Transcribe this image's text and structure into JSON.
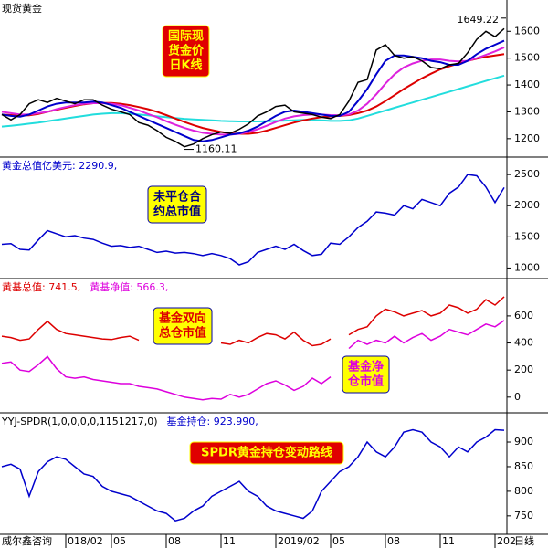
{
  "chart_data": [
    {
      "type": "line",
      "header": [
        {
          "text": "现货黄金",
          "color": "#000000"
        }
      ],
      "boxes": [
        {
          "lines": [
            "国际现",
            "货金价",
            "日K线"
          ],
          "fill": "#e00000",
          "text_color": "#ffff00"
        }
      ],
      "ylim": [
        1145,
        1703
      ],
      "yticks": [
        1200,
        1300,
        1400,
        1500,
        1600
      ],
      "annotations": [
        {
          "value": 1649.22,
          "label": "1649.22",
          "at": "max"
        },
        {
          "value": 1160.11,
          "label": "1160.11",
          "at": "min"
        }
      ],
      "series": [
        {
          "name": "MA-cyan",
          "color": "#22dddd",
          "values": [
            1245,
            1248,
            1252,
            1256,
            1260,
            1265,
            1270,
            1275,
            1280,
            1285,
            1290,
            1293,
            1295,
            1295,
            1293,
            1290,
            1287,
            1283,
            1280,
            1277,
            1274,
            1272,
            1270,
            1268,
            1266,
            1265,
            1264,
            1264,
            1264,
            1265,
            1266,
            1267,
            1268,
            1270,
            1270,
            1268,
            1266,
            1266,
            1268,
            1275,
            1285,
            1295,
            1305,
            1315,
            1325,
            1335,
            1345,
            1355,
            1365,
            1375,
            1385,
            1395,
            1405,
            1415,
            1425,
            1435
          ]
        },
        {
          "name": "MA-red",
          "color": "#dd0000",
          "values": [
            1290,
            1288,
            1286,
            1287,
            1292,
            1300,
            1308,
            1315,
            1322,
            1328,
            1332,
            1333,
            1333,
            1330,
            1325,
            1318,
            1310,
            1300,
            1288,
            1275,
            1262,
            1250,
            1240,
            1232,
            1225,
            1220,
            1218,
            1218,
            1222,
            1230,
            1240,
            1250,
            1260,
            1268,
            1275,
            1280,
            1283,
            1285,
            1288,
            1295,
            1305,
            1320,
            1340,
            1362,
            1385,
            1405,
            1425,
            1442,
            1458,
            1470,
            1480,
            1490,
            1498,
            1505,
            1510,
            1515
          ]
        },
        {
          "name": "MA-magenta",
          "color": "#dd22dd",
          "values": [
            1300,
            1295,
            1290,
            1290,
            1295,
            1300,
            1310,
            1318,
            1325,
            1330,
            1332,
            1332,
            1330,
            1325,
            1315,
            1305,
            1292,
            1280,
            1265,
            1252,
            1240,
            1230,
            1222,
            1218,
            1215,
            1215,
            1218,
            1225,
            1235,
            1248,
            1262,
            1275,
            1283,
            1288,
            1290,
            1290,
            1288,
            1287,
            1290,
            1305,
            1330,
            1365,
            1405,
            1440,
            1465,
            1480,
            1490,
            1495,
            1495,
            1490,
            1488,
            1490,
            1500,
            1512,
            1525,
            1540
          ]
        },
        {
          "name": "MA-blue",
          "color": "#0000cc",
          "values": [
            1290,
            1285,
            1282,
            1290,
            1305,
            1320,
            1330,
            1335,
            1335,
            1335,
            1338,
            1335,
            1325,
            1315,
            1300,
            1285,
            1270,
            1255,
            1240,
            1225,
            1210,
            1195,
            1190,
            1195,
            1205,
            1215,
            1220,
            1230,
            1245,
            1265,
            1285,
            1300,
            1305,
            1300,
            1295,
            1290,
            1285,
            1285,
            1300,
            1340,
            1385,
            1440,
            1490,
            1510,
            1510,
            1505,
            1500,
            1490,
            1485,
            1475,
            1475,
            1490,
            1515,
            1535,
            1550,
            1565
          ]
        },
        {
          "name": "price",
          "color": "#000000",
          "values": [
            1290,
            1270,
            1290,
            1330,
            1345,
            1335,
            1350,
            1340,
            1330,
            1345,
            1345,
            1325,
            1310,
            1300,
            1290,
            1260,
            1250,
            1230,
            1205,
            1190,
            1170,
            1180,
            1200,
            1215,
            1225,
            1220,
            1235,
            1255,
            1285,
            1300,
            1320,
            1325,
            1300,
            1295,
            1290,
            1280,
            1275,
            1290,
            1340,
            1410,
            1420,
            1530,
            1550,
            1510,
            1500,
            1505,
            1490,
            1465,
            1460,
            1475,
            1480,
            1520,
            1570,
            1600,
            1580,
            1610
          ]
        }
      ]
    },
    {
      "type": "line",
      "header": [
        {
          "text": "黄金总值亿美元: 2290.9,",
          "color": "#0000cc"
        }
      ],
      "boxes": [
        {
          "lines": [
            "未平仓合",
            "约总市值"
          ],
          "fill": "#ffff00",
          "text_color": "#000080"
        }
      ],
      "ylim": [
        889,
        2722
      ],
      "yticks": [
        1000,
        1500,
        2000,
        2500
      ],
      "series": [
        {
          "name": "黄金总值",
          "color": "#0000cc",
          "values": [
            1380,
            1390,
            1300,
            1290,
            1450,
            1600,
            1550,
            1500,
            1520,
            1480,
            1460,
            1400,
            1350,
            1360,
            1330,
            1350,
            1300,
            1250,
            1270,
            1240,
            1250,
            1230,
            1200,
            1230,
            1200,
            1150,
            1050,
            1100,
            1250,
            1300,
            1350,
            1300,
            1380,
            1280,
            1200,
            1220,
            1400,
            1380,
            1500,
            1650,
            1750,
            1900,
            1880,
            1850,
            2000,
            1950,
            2100,
            2050,
            2000,
            2200,
            2300,
            2500,
            2480,
            2300,
            2050,
            2290.9
          ]
        }
      ]
    },
    {
      "type": "line",
      "header": [
        {
          "text": "黄基总值: 741.5,",
          "color": "#dd0000"
        },
        {
          "text": "黄基净值: 566.3,",
          "color": "#dd00dd"
        }
      ],
      "boxes": [
        {
          "lines": [
            "基金双向",
            "总仓市值"
          ],
          "fill": "#ffff00",
          "text_color": "#dd0000"
        },
        {
          "lines": [
            "基金净",
            "仓市值"
          ],
          "fill": "#ffff00",
          "text_color": "#dd00dd"
        }
      ],
      "ylim": [
        -89,
        849
      ],
      "yticks": [
        0,
        200,
        400,
        600
      ],
      "series": [
        {
          "name": "黄基总值",
          "color": "#dd0000",
          "values": [
            450,
            440,
            420,
            430,
            500,
            560,
            500,
            470,
            460,
            450,
            440,
            430,
            425,
            440,
            450,
            420,
            null,
            null,
            null,
            null,
            null,
            null,
            null,
            null,
            400,
            390,
            420,
            400,
            440,
            470,
            460,
            430,
            480,
            420,
            380,
            390,
            430,
            null,
            460,
            500,
            520,
            600,
            650,
            630,
            600,
            620,
            640,
            600,
            620,
            680,
            660,
            620,
            650,
            720,
            680,
            741.5
          ]
        },
        {
          "name": "黄基净值",
          "color": "#dd00dd",
          "values": [
            250,
            260,
            200,
            190,
            240,
            300,
            210,
            150,
            140,
            150,
            130,
            120,
            110,
            100,
            100,
            80,
            70,
            60,
            40,
            20,
            0,
            -10,
            -20,
            -10,
            -15,
            20,
            0,
            20,
            60,
            100,
            120,
            90,
            50,
            80,
            140,
            100,
            150,
            null,
            360,
            420,
            390,
            420,
            400,
            450,
            400,
            440,
            470,
            420,
            450,
            500,
            480,
            460,
            500,
            540,
            520,
            566.3
          ]
        }
      ]
    },
    {
      "type": "line",
      "header": [
        {
          "text": "YYJ-SPDR(1,0,0,0,0,1151217,0)",
          "color": "#000000"
        },
        {
          "text": "基金持仓: 923.990,",
          "color": "#0000cc"
        }
      ],
      "boxes": [
        {
          "lines": [
            "SPDR黄金持仓变动路线"
          ],
          "fill": "#e00000",
          "text_color": "#ffff00"
        }
      ],
      "ylim": [
        720,
        952
      ],
      "yticks": [
        750,
        800,
        850,
        900
      ],
      "series": [
        {
          "name": "基金持仓",
          "color": "#0000cc",
          "values": [
            850,
            855,
            845,
            790,
            840,
            860,
            870,
            865,
            850,
            835,
            830,
            810,
            800,
            795,
            790,
            780,
            770,
            760,
            755,
            740,
            745,
            760,
            770,
            790,
            800,
            810,
            820,
            800,
            790,
            770,
            760,
            755,
            750,
            745,
            760,
            800,
            820,
            840,
            850,
            870,
            900,
            880,
            870,
            890,
            920,
            925,
            920,
            900,
            890,
            870,
            890,
            880,
            900,
            910,
            925,
            923.99
          ]
        }
      ],
      "source": "威尔鑫咨询",
      "x_label": "日线",
      "xticks": [
        {
          "value": 7,
          "label": "018/02"
        },
        {
          "value": 12,
          "label": "05"
        },
        {
          "value": 18,
          "label": "08"
        },
        {
          "value": 24,
          "label": "11"
        },
        {
          "value": 30,
          "label": "2019/02"
        },
        {
          "value": 36,
          "label": "05"
        },
        {
          "value": 42,
          "label": "08"
        },
        {
          "value": 48,
          "label": "11"
        },
        {
          "value": 54,
          "label": "202"
        }
      ]
    }
  ]
}
